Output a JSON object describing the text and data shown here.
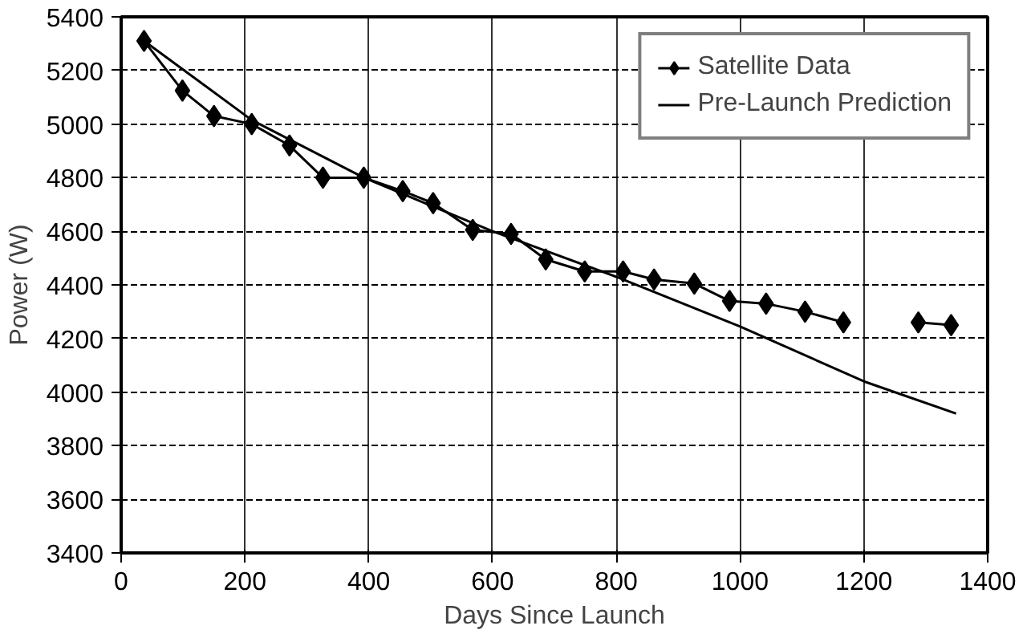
{
  "chart_data": {
    "type": "line",
    "xlabel": "Days Since Launch",
    "ylabel": "Power (W)",
    "xlim": [
      0,
      1400
    ],
    "xticks": [
      0,
      200,
      400,
      600,
      800,
      1000,
      1200,
      1400
    ],
    "ylim": [
      3400,
      5400
    ],
    "yticks": [
      3400,
      3600,
      3800,
      4000,
      4200,
      4400,
      4600,
      4800,
      5000,
      5200,
      5400
    ],
    "grid": true,
    "legend": "top right",
    "series": [
      {
        "name": "Satellite Data",
        "color": "#000000",
        "marker": "diamond",
        "line_style": "solid",
        "x": [
          37,
          99,
          150,
          211,
          272,
          326,
          392,
          455,
          504,
          568,
          630,
          686,
          749,
          811,
          861,
          926,
          983,
          1042,
          1105,
          1167,
          1228,
          1288,
          1341
        ],
        "values": [
          5310,
          5125,
          5030,
          5000,
          4920,
          4800,
          4800,
          4750,
          4705,
          4605,
          4590,
          4495,
          4450,
          4450,
          4420,
          4405,
          4340,
          4330,
          4300,
          4260,
          null,
          4260,
          4250
        ]
      },
      {
        "name": "Pre-Launch Prediction",
        "color": "#000000",
        "marker": "none",
        "line_style": "solid",
        "x": [
          37,
          211,
          392,
          600,
          800,
          1000,
          1200,
          1349
        ],
        "values": [
          5310,
          5015,
          4800,
          4600,
          4430,
          4245,
          4040,
          3920
        ]
      }
    ]
  }
}
